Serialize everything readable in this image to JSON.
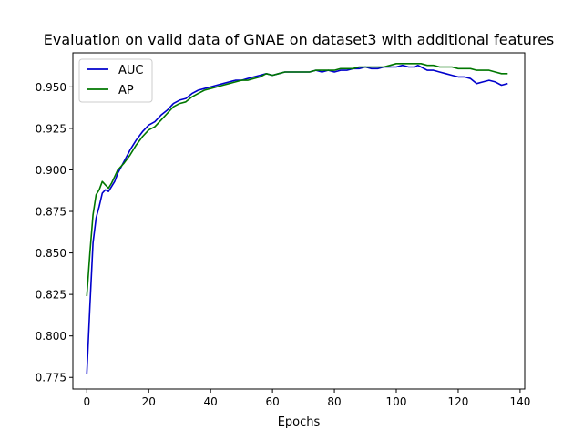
{
  "chart_data": {
    "type": "line",
    "title": "Evaluation on valid data of GNAE on dataset3 with additional features",
    "xlabel": "Epochs",
    "ylabel": "",
    "xlim": [
      -4.5,
      141.5
    ],
    "ylim": [
      0.768,
      0.9705
    ],
    "xticks": [
      0,
      20,
      40,
      60,
      80,
      100,
      120,
      140
    ],
    "xtick_labels": [
      "0",
      "20",
      "40",
      "60",
      "80",
      "100",
      "120",
      "140"
    ],
    "yticks": [
      0.775,
      0.8,
      0.825,
      0.85,
      0.875,
      0.9,
      0.925,
      0.95
    ],
    "ytick_labels": [
      "0.775",
      "0.800",
      "0.825",
      "0.850",
      "0.875",
      "0.900",
      "0.925",
      "0.950"
    ],
    "grid": false,
    "legend_position": "upper left",
    "series": [
      {
        "name": "AUC",
        "color": "#0000cc",
        "x": [
          0,
          1,
          2,
          3,
          4,
          5,
          6,
          7,
          8,
          9,
          10,
          12,
          14,
          16,
          18,
          20,
          22,
          24,
          26,
          28,
          30,
          32,
          34,
          36,
          38,
          40,
          42,
          44,
          46,
          48,
          50,
          52,
          54,
          56,
          58,
          60,
          62,
          64,
          66,
          68,
          70,
          72,
          74,
          76,
          78,
          80,
          82,
          84,
          86,
          88,
          90,
          92,
          94,
          96,
          98,
          100,
          102,
          104,
          106,
          107,
          108,
          110,
          112,
          114,
          116,
          118,
          120,
          122,
          124,
          126,
          128,
          130,
          132,
          134,
          136
        ],
        "values": [
          0.777,
          0.818,
          0.856,
          0.871,
          0.878,
          0.886,
          0.888,
          0.887,
          0.89,
          0.893,
          0.898,
          0.905,
          0.912,
          0.918,
          0.923,
          0.927,
          0.929,
          0.933,
          0.936,
          0.94,
          0.942,
          0.943,
          0.946,
          0.948,
          0.949,
          0.95,
          0.951,
          0.952,
          0.953,
          0.954,
          0.954,
          0.955,
          0.956,
          0.957,
          0.958,
          0.957,
          0.958,
          0.959,
          0.959,
          0.959,
          0.959,
          0.959,
          0.96,
          0.959,
          0.96,
          0.959,
          0.96,
          0.96,
          0.961,
          0.961,
          0.962,
          0.961,
          0.961,
          0.962,
          0.962,
          0.962,
          0.963,
          0.962,
          0.962,
          0.963,
          0.962,
          0.96,
          0.96,
          0.959,
          0.958,
          0.957,
          0.956,
          0.956,
          0.955,
          0.952,
          0.953,
          0.954,
          0.953,
          0.951,
          0.952
        ]
      },
      {
        "name": "AP",
        "color": "#007700",
        "x": [
          0,
          1,
          2,
          3,
          4,
          5,
          6,
          7,
          8,
          9,
          10,
          12,
          14,
          16,
          18,
          20,
          22,
          24,
          26,
          28,
          30,
          32,
          34,
          36,
          38,
          40,
          42,
          44,
          46,
          48,
          50,
          52,
          54,
          56,
          58,
          60,
          62,
          64,
          66,
          68,
          70,
          72,
          74,
          76,
          78,
          80,
          82,
          84,
          86,
          88,
          90,
          92,
          94,
          96,
          98,
          100,
          102,
          104,
          106,
          107,
          108,
          110,
          112,
          114,
          116,
          118,
          120,
          122,
          124,
          126,
          128,
          130,
          132,
          134,
          136
        ],
        "values": [
          0.824,
          0.85,
          0.873,
          0.885,
          0.888,
          0.893,
          0.891,
          0.889,
          0.892,
          0.896,
          0.9,
          0.904,
          0.909,
          0.915,
          0.92,
          0.924,
          0.926,
          0.93,
          0.934,
          0.938,
          0.94,
          0.941,
          0.944,
          0.946,
          0.948,
          0.949,
          0.95,
          0.951,
          0.952,
          0.953,
          0.954,
          0.954,
          0.955,
          0.956,
          0.958,
          0.957,
          0.958,
          0.959,
          0.959,
          0.959,
          0.959,
          0.959,
          0.96,
          0.96,
          0.96,
          0.96,
          0.961,
          0.961,
          0.961,
          0.962,
          0.962,
          0.962,
          0.962,
          0.962,
          0.963,
          0.964,
          0.964,
          0.964,
          0.964,
          0.964,
          0.964,
          0.963,
          0.963,
          0.962,
          0.962,
          0.962,
          0.961,
          0.961,
          0.961,
          0.96,
          0.96,
          0.96,
          0.959,
          0.958,
          0.958
        ]
      }
    ]
  }
}
